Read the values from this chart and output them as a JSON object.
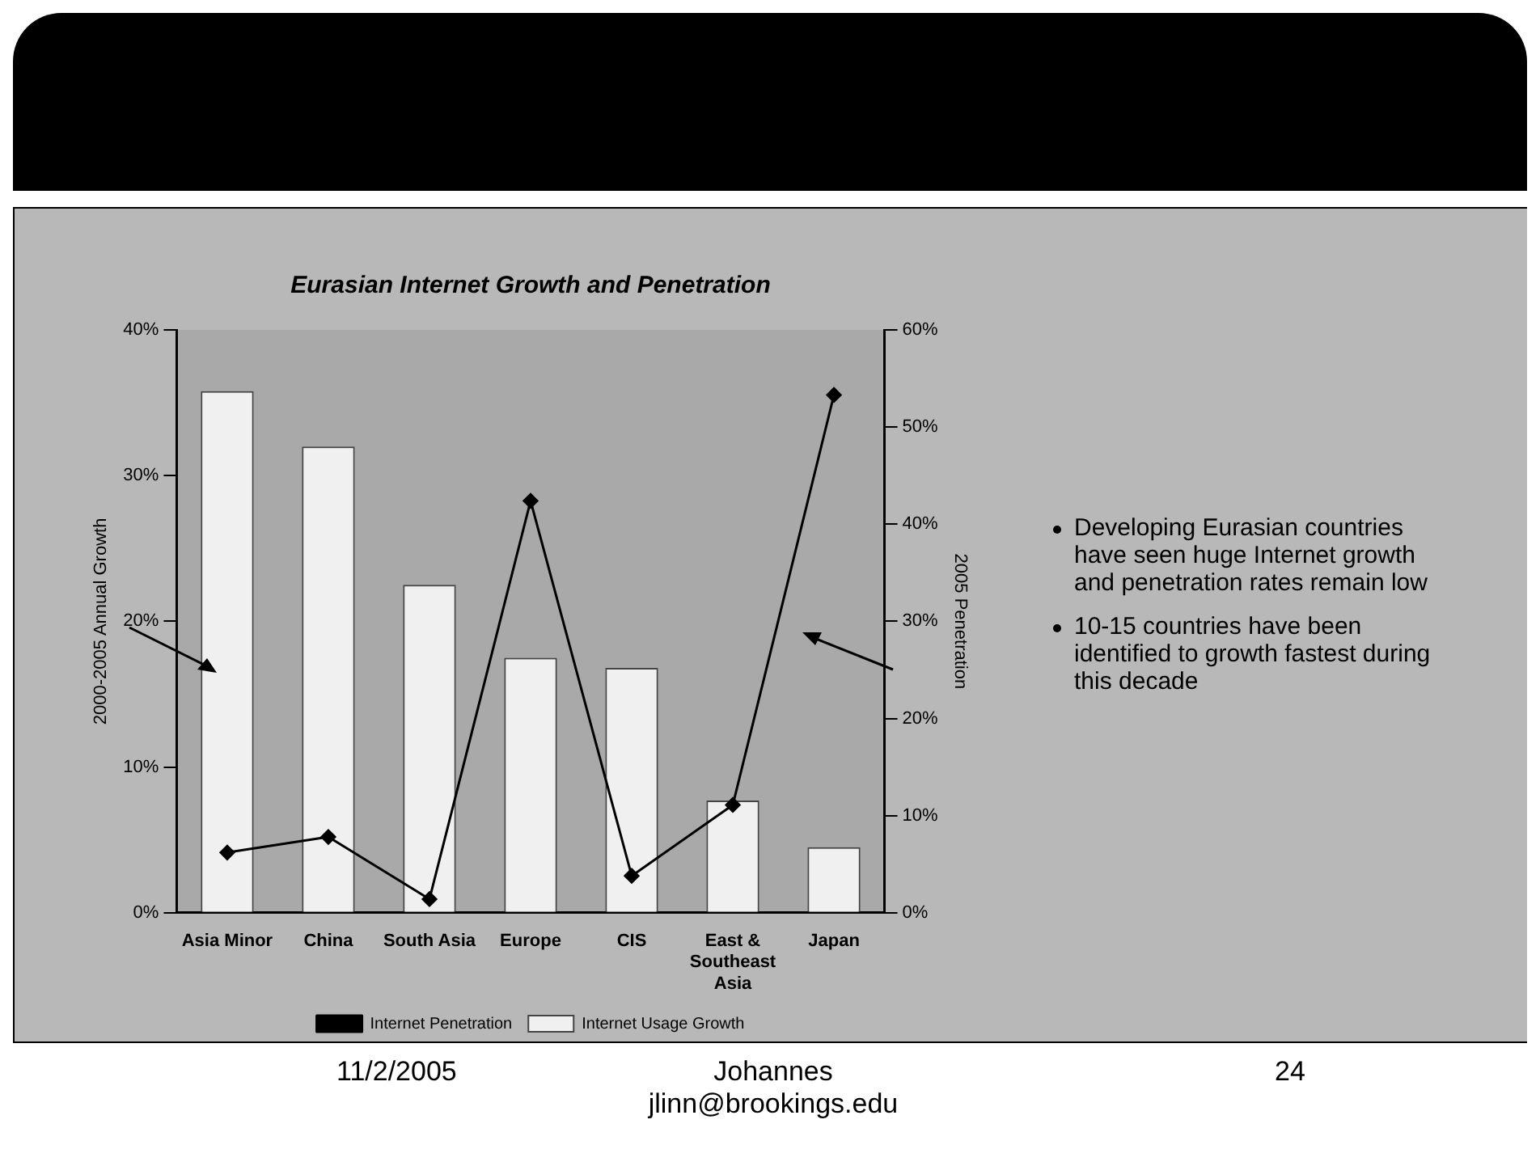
{
  "chart_data": {
    "type": "bar",
    "title": "Eurasian Internet Growth and Penetration",
    "ylabel": "2000-2005 Annual Growth",
    "y2label": "2005 Penetration",
    "categories": [
      "Asia Minor",
      "China",
      "South Asia",
      "Europe",
      "CIS",
      "East & Southeast Asia",
      "Japan"
    ],
    "series": [
      {
        "name": "Internet Usage Growth",
        "color": "#f0f0f0",
        "values": [
          35.8,
          32.0,
          22.5,
          17.5,
          16.8,
          7.7,
          4.5
        ]
      },
      {
        "name": "Internet Penetration",
        "type": "line",
        "axis": "y2",
        "color": "#000000",
        "values": [
          6.2,
          7.8,
          1.4,
          42.4,
          3.8,
          11.1,
          53.3
        ]
      }
    ],
    "ylim": [
      0,
      40
    ],
    "yticks": [
      {
        "value": 0,
        "label": "0%"
      },
      {
        "value": 10,
        "label": "10%"
      },
      {
        "value": 20,
        "label": "20%"
      },
      {
        "value": 30,
        "label": "30%"
      },
      {
        "value": 40,
        "label": "40%"
      }
    ],
    "y2lim": [
      0,
      60
    ],
    "y2ticks": [
      {
        "value": 0,
        "label": "0%"
      },
      {
        "value": 10,
        "label": "10%"
      },
      {
        "value": 20,
        "label": "20%"
      },
      {
        "value": 30,
        "label": "30%"
      },
      {
        "value": 40,
        "label": "40%"
      },
      {
        "value": 50,
        "label": "50%"
      },
      {
        "value": 60,
        "label": "60%"
      }
    ],
    "grid": false,
    "legend": "bottom",
    "marker": "diamond",
    "annotations": [
      "Developing Eurasian countries have seen huge Internet growth and penetration rates remain low",
      "10-15 countries have been identified to growth fastest during this decade",
      "11/2/2005",
      "Johannes",
      "jlinn@brookings.edu",
      "24"
    ]
  }
}
